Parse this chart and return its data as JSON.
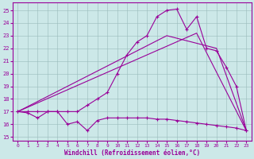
{
  "bg_color": "#cce8e8",
  "grid_color": "#99bbbb",
  "line_color": "#990099",
  "xlabel": "Windchill (Refroidissement éolien,°C)",
  "ylim": [
    14.7,
    25.6
  ],
  "xlim": [
    -0.5,
    23.5
  ],
  "yticks": [
    15,
    16,
    17,
    18,
    19,
    20,
    21,
    22,
    23,
    24,
    25
  ],
  "xticks": [
    0,
    1,
    2,
    3,
    4,
    5,
    6,
    7,
    8,
    9,
    10,
    11,
    12,
    13,
    14,
    15,
    16,
    17,
    18,
    19,
    20,
    21,
    22,
    23
  ],
  "series_lower": {
    "x": [
      0,
      1,
      2,
      3,
      4,
      5,
      6,
      7,
      8,
      9,
      10,
      11,
      12,
      13,
      14,
      15,
      16,
      17,
      18,
      19,
      20,
      21,
      22,
      23
    ],
    "y": [
      17.0,
      16.9,
      16.5,
      17.0,
      17.0,
      16.0,
      16.2,
      15.5,
      16.3,
      16.5,
      16.5,
      16.5,
      16.5,
      16.5,
      16.4,
      16.4,
      16.3,
      16.2,
      16.1,
      16.0,
      15.9,
      15.8,
      15.7,
      15.5
    ]
  },
  "series_upper": {
    "x": [
      0,
      1,
      2,
      3,
      4,
      5,
      6,
      7,
      8,
      9,
      10,
      11,
      12,
      13,
      14,
      15,
      16,
      17,
      18,
      19,
      20,
      21,
      22,
      23
    ],
    "y": [
      17.0,
      17.0,
      17.0,
      17.0,
      17.0,
      17.0,
      17.0,
      17.5,
      18.0,
      18.5,
      20.0,
      21.5,
      22.5,
      23.0,
      24.5,
      25.0,
      25.1,
      23.5,
      24.5,
      22.0,
      21.8,
      20.5,
      19.0,
      15.5
    ]
  },
  "series_line1": {
    "x": [
      0,
      15,
      20,
      23
    ],
    "y": [
      17.0,
      23.0,
      22.0,
      15.5
    ]
  },
  "series_line2": {
    "x": [
      0,
      18,
      23
    ],
    "y": [
      17.0,
      23.2,
      15.5
    ]
  }
}
